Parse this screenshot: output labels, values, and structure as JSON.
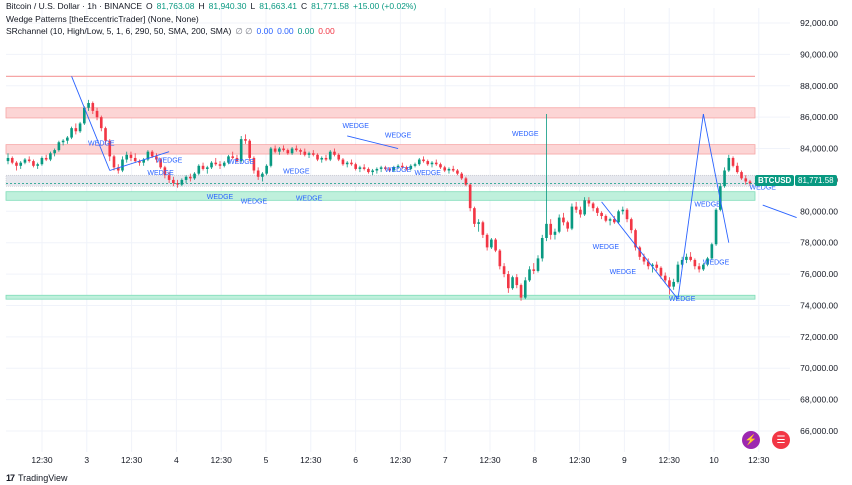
{
  "legend": {
    "symbol_line": "Bitcoin / U.S. Dollar · 1h · BINANCE",
    "o_label": "O",
    "o_value": "81,763.08",
    "h_label": "H",
    "h_value": "81,940.30",
    "l_label": "L",
    "l_value": "81,663.41",
    "c_label": "C",
    "c_value": "81,771.58",
    "change": "+15.00 (+0.02%)",
    "indicator1": "Wedge Patterns [theEccentricTrader] (None, None)",
    "indicator2": "SRchannel (10, High/Low, 5, 1, 6, 290, 50, SMA, 200, SMA)",
    "indicator2_symbols": "∅ ∅",
    "indicator2_values": [
      "0.00",
      "0.00",
      "0.00",
      "0.00"
    ]
  },
  "last_price": {
    "symbol": "BTCUSD",
    "value": "81,771.58"
  },
  "branding": "TradingView",
  "colors": {
    "up": "#089981",
    "down": "#f23645",
    "wedge": "#2962ff",
    "resistance_zone": "#f23645",
    "support_zone": "#089981",
    "grid": "#f0f3fa"
  },
  "chart_data": {
    "type": "candlestick",
    "y_axis_ticks": [
      "92,000.00",
      "90,000.00",
      "88,000.00",
      "86,000.00",
      "84,000.00",
      "82,000.00",
      "80,000.00",
      "78,000.00",
      "76,000.00",
      "74,000.00",
      "72,000.00",
      "70,000.00",
      "68,000.00",
      "66,000.00"
    ],
    "x_axis_ticks": [
      "12:30",
      "3",
      "12:30",
      "4",
      "12:30",
      "5",
      "12:30",
      "6",
      "12:30",
      "7",
      "12:30",
      "8",
      "12:30",
      "9",
      "12:30",
      "10",
      "12:30"
    ],
    "ylim": [
      65000,
      93000
    ],
    "resistance_zones": [
      [
        85950,
        86600
      ],
      [
        83650,
        84250
      ]
    ],
    "support_zones": [
      [
        80700,
        81250
      ],
      [
        74400,
        74650
      ]
    ],
    "upper_line": 88600,
    "current_band": [
      81600,
      82300
    ],
    "wedge_label": "WEDGE",
    "wedges": [
      {
        "x": 22,
        "price": 84200
      },
      {
        "x": 36,
        "price": 82300
      },
      {
        "x": 38,
        "price": 83100
      },
      {
        "x": 50,
        "price": 80800
      },
      {
        "x": 55,
        "price": 83000
      },
      {
        "x": 58,
        "price": 80500
      },
      {
        "x": 68,
        "price": 82400
      },
      {
        "x": 71,
        "price": 80700
      },
      {
        "x": 82,
        "price": 85300
      },
      {
        "x": 92,
        "price": 84700
      },
      {
        "x": 92,
        "price": 82500
      },
      {
        "x": 99,
        "price": 82300
      },
      {
        "x": 122,
        "price": 84800
      },
      {
        "x": 141,
        "price": 77600
      },
      {
        "x": 145,
        "price": 76000
      },
      {
        "x": 159,
        "price": 74300
      },
      {
        "x": 165,
        "price": 80300
      },
      {
        "x": 167,
        "price": 76600
      },
      {
        "x": 178,
        "price": 81400
      },
      {
        "x": 213,
        "price": 80200
      }
    ],
    "candles": [
      [
        83200,
        83700,
        83000,
        83400
      ],
      [
        83400,
        83500,
        83000,
        83100
      ],
      [
        83100,
        83200,
        82600,
        82900
      ],
      [
        82900,
        83200,
        82700,
        83100
      ],
      [
        83100,
        83400,
        83000,
        83300
      ],
      [
        83300,
        83500,
        83100,
        83200
      ],
      [
        83200,
        83300,
        82800,
        82900
      ],
      [
        82900,
        83100,
        82700,
        83000
      ],
      [
        83000,
        83500,
        82900,
        83400
      ],
      [
        83400,
        83600,
        83200,
        83300
      ],
      [
        83300,
        83800,
        83200,
        83700
      ],
      [
        83700,
        84000,
        83500,
        83900
      ],
      [
        83900,
        84500,
        83800,
        84400
      ],
      [
        84400,
        84600,
        84200,
        84500
      ],
      [
        84500,
        84800,
        84300,
        84700
      ],
      [
        84700,
        85400,
        84600,
        85300
      ],
      [
        85300,
        85600,
        84900,
        85100
      ],
      [
        85100,
        85700,
        85000,
        85600
      ],
      [
        85600,
        86700,
        85500,
        86600
      ],
      [
        86600,
        87100,
        86400,
        86900
      ],
      [
        86900,
        87000,
        86200,
        86400
      ],
      [
        86400,
        86600,
        85800,
        86000
      ],
      [
        86000,
        86100,
        85100,
        85300
      ],
      [
        85300,
        85400,
        84300,
        84500
      ],
      [
        84500,
        84600,
        83200,
        83500
      ],
      [
        83500,
        83600,
        82600,
        82800
      ],
      [
        82800,
        83000,
        82400,
        82600
      ],
      [
        82600,
        83500,
        82500,
        83300
      ],
      [
        83300,
        83800,
        83100,
        83600
      ],
      [
        83600,
        83800,
        83200,
        83400
      ],
      [
        83400,
        83700,
        83100,
        83200
      ],
      [
        83200,
        83300,
        82900,
        83100
      ],
      [
        83100,
        83400,
        82900,
        83300
      ],
      [
        83300,
        83900,
        83200,
        83800
      ],
      [
        83800,
        83900,
        83400,
        83500
      ],
      [
        83500,
        83700,
        83100,
        83300
      ],
      [
        83300,
        83400,
        82700,
        82800
      ],
      [
        82800,
        82900,
        82100,
        82300
      ],
      [
        82300,
        82500,
        81800,
        82000
      ],
      [
        82000,
        82200,
        81600,
        81800
      ],
      [
        81800,
        82000,
        81500,
        81700
      ],
      [
        81700,
        82100,
        81600,
        82000
      ],
      [
        82000,
        82300,
        81800,
        82200
      ],
      [
        82200,
        82400,
        81900,
        82100
      ],
      [
        82100,
        82500,
        82000,
        82400
      ],
      [
        82400,
        83000,
        82300,
        82900
      ],
      [
        82900,
        83100,
        82600,
        82700
      ],
      [
        82700,
        82900,
        82400,
        82800
      ],
      [
        82800,
        83200,
        82700,
        83100
      ],
      [
        83100,
        83400,
        82900,
        83000
      ],
      [
        83000,
        83200,
        82700,
        82900
      ],
      [
        82900,
        83200,
        82800,
        83100
      ],
      [
        83100,
        83600,
        83000,
        83500
      ],
      [
        83500,
        83800,
        83300,
        83400
      ],
      [
        83400,
        83600,
        83100,
        83200
      ],
      [
        83200,
        84800,
        83100,
        84600
      ],
      [
        84600,
        84900,
        84300,
        84500
      ],
      [
        84500,
        84600,
        83200,
        83400
      ],
      [
        83400,
        83500,
        82400,
        82600
      ],
      [
        82600,
        82800,
        82000,
        82200
      ],
      [
        82200,
        82500,
        81900,
        82400
      ],
      [
        82400,
        83000,
        82300,
        82900
      ],
      [
        82900,
        84100,
        82800,
        84000
      ],
      [
        84000,
        84200,
        83700,
        83800
      ],
      [
        83800,
        84100,
        83600,
        84000
      ],
      [
        84000,
        84200,
        83800,
        83900
      ],
      [
        83900,
        84000,
        83600,
        83700
      ],
      [
        83700,
        84100,
        83600,
        84000
      ],
      [
        84000,
        84200,
        83800,
        83900
      ],
      [
        83900,
        84000,
        83600,
        83800
      ],
      [
        83800,
        84000,
        83500,
        83600
      ],
      [
        83600,
        83800,
        83400,
        83700
      ],
      [
        83700,
        83900,
        83500,
        83600
      ],
      [
        83600,
        83700,
        83200,
        83300
      ],
      [
        83300,
        83500,
        83100,
        83400
      ],
      [
        83400,
        83600,
        83200,
        83300
      ],
      [
        83300,
        83900,
        83200,
        83800
      ],
      [
        83800,
        84000,
        83500,
        83600
      ],
      [
        83600,
        83700,
        83200,
        83300
      ],
      [
        83300,
        83400,
        82900,
        83000
      ],
      [
        83000,
        83200,
        82800,
        83100
      ],
      [
        83100,
        83300,
        82900,
        83000
      ],
      [
        83000,
        83100,
        82600,
        82700
      ],
      [
        82700,
        82900,
        82500,
        82800
      ],
      [
        82800,
        83000,
        82600,
        82700
      ],
      [
        82700,
        82800,
        82400,
        82500
      ],
      [
        82500,
        82700,
        82300,
        82600
      ],
      [
        82600,
        82800,
        82400,
        82700
      ],
      [
        82700,
        82900,
        82500,
        82800
      ],
      [
        82800,
        82900,
        82600,
        82700
      ],
      [
        82700,
        82800,
        82500,
        82600
      ],
      [
        82600,
        82900,
        82500,
        82800
      ],
      [
        82800,
        83000,
        82700,
        82900
      ],
      [
        82900,
        83100,
        82700,
        82800
      ],
      [
        82800,
        82900,
        82600,
        82700
      ],
      [
        82700,
        83000,
        82600,
        82900
      ],
      [
        82900,
        83100,
        82800,
        83000
      ],
      [
        83000,
        83400,
        82900,
        83300
      ],
      [
        83300,
        83500,
        83100,
        83200
      ],
      [
        83200,
        83300,
        82900,
        83000
      ],
      [
        83000,
        83200,
        82800,
        83100
      ],
      [
        83100,
        83300,
        82900,
        83000
      ],
      [
        83000,
        83100,
        82700,
        82800
      ],
      [
        82800,
        82900,
        82500,
        82600
      ],
      [
        82600,
        82800,
        82400,
        82700
      ],
      [
        82700,
        82900,
        82500,
        82600
      ],
      [
        82600,
        82700,
        82300,
        82400
      ],
      [
        82400,
        82500,
        82000,
        82100
      ],
      [
        82100,
        82200,
        81600,
        81700
      ],
      [
        81700,
        81800,
        80000,
        80200
      ],
      [
        80200,
        80300,
        79000,
        79200
      ],
      [
        79200,
        79500,
        78700,
        79300
      ],
      [
        79300,
        79400,
        78300,
        78500
      ],
      [
        78500,
        78600,
        77500,
        77700
      ],
      [
        77700,
        78300,
        77600,
        78200
      ],
      [
        78200,
        78300,
        77400,
        77500
      ],
      [
        77500,
        77600,
        76300,
        76500
      ],
      [
        76500,
        76700,
        75800,
        76000
      ],
      [
        76000,
        76200,
        74800,
        75100
      ],
      [
        75100,
        75900,
        75000,
        75800
      ],
      [
        75800,
        76000,
        75100,
        75300
      ],
      [
        75300,
        75400,
        74300,
        74500
      ],
      [
        74500,
        75800,
        74400,
        75600
      ],
      [
        75600,
        76500,
        75500,
        76300
      ],
      [
        76300,
        76700,
        76000,
        76200
      ],
      [
        76200,
        77200,
        76100,
        77000
      ],
      [
        77000,
        78500,
        76800,
        78300
      ],
      [
        78300,
        86200,
        78100,
        79200
      ],
      [
        79200,
        79500,
        78200,
        78500
      ],
      [
        78500,
        78900,
        78200,
        78700
      ],
      [
        78700,
        79800,
        78600,
        79600
      ],
      [
        79600,
        79900,
        79100,
        79300
      ],
      [
        79300,
        79400,
        78700,
        78900
      ],
      [
        78900,
        80500,
        78800,
        80300
      ],
      [
        80300,
        80600,
        79900,
        80100
      ],
      [
        80100,
        80300,
        79600,
        79800
      ],
      [
        79800,
        80900,
        79700,
        80700
      ],
      [
        80700,
        80900,
        80300,
        80500
      ],
      [
        80500,
        80600,
        80000,
        80200
      ],
      [
        80200,
        80300,
        79700,
        79900
      ],
      [
        79900,
        80000,
        79500,
        79700
      ],
      [
        79700,
        79800,
        79300,
        79400
      ],
      [
        79400,
        79600,
        79100,
        79500
      ],
      [
        79500,
        79700,
        79200,
        79300
      ],
      [
        79300,
        80100,
        79200,
        80000
      ],
      [
        80000,
        80300,
        79800,
        80100
      ],
      [
        80100,
        80200,
        79300,
        79500
      ],
      [
        79500,
        79600,
        78600,
        78800
      ],
      [
        78800,
        78900,
        77500,
        77700
      ],
      [
        77700,
        77800,
        76900,
        77100
      ],
      [
        77100,
        77300,
        76600,
        76800
      ],
      [
        76800,
        77000,
        76300,
        76500
      ],
      [
        76500,
        76700,
        76100,
        76600
      ],
      [
        76600,
        76800,
        76200,
        76400
      ],
      [
        76400,
        76500,
        75700,
        75900
      ],
      [
        75900,
        76100,
        75400,
        75600
      ],
      [
        75600,
        75800,
        74700,
        75200
      ],
      [
        75200,
        75700,
        75000,
        75500
      ],
      [
        75500,
        76800,
        75400,
        76600
      ],
      [
        76600,
        77100,
        76400,
        76900
      ],
      [
        76900,
        77300,
        76700,
        77100
      ],
      [
        77100,
        77400,
        76800,
        76900
      ],
      [
        76900,
        77000,
        76300,
        76500
      ],
      [
        76500,
        76700,
        76100,
        76300
      ],
      [
        76300,
        76700,
        76200,
        76600
      ],
      [
        76600,
        77100,
        76500,
        77000
      ],
      [
        77000,
        78000,
        76900,
        77900
      ],
      [
        77900,
        80200,
        77800,
        80100
      ],
      [
        80100,
        81800,
        80000,
        81600
      ],
      [
        81600,
        82800,
        81500,
        82600
      ],
      [
        82600,
        83600,
        82500,
        83400
      ],
      [
        83400,
        83500,
        82800,
        82900
      ],
      [
        82900,
        83100,
        82400,
        82500
      ],
      [
        82500,
        82600,
        82000,
        82100
      ],
      [
        82100,
        82300,
        81700,
        81900
      ],
      [
        81900,
        82000,
        81600,
        81770
      ]
    ],
    "last_value": 81771.58
  }
}
